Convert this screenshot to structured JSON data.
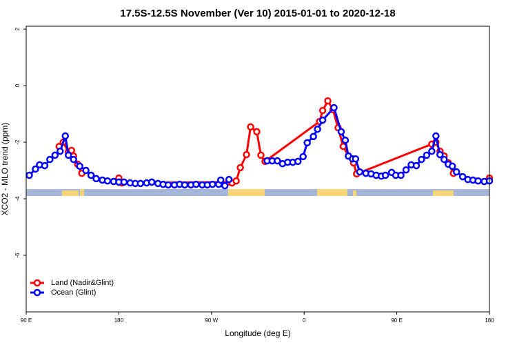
{
  "chart_data": {
    "type": "line",
    "title": "17.5S-12.5S November (Ver 10)   2015-01-01 to 2020-12-18",
    "x_label": "Longitude (deg E)",
    "y_label": "XCO2 - MLO trend (ppm)",
    "xlim": [
      90,
      540
    ],
    "ylim": [
      -8,
      2.1
    ],
    "xticks": [
      {
        "value": 90,
        "label": "90 E"
      },
      180,
      {
        "value": 270,
        "label": "90 W"
      },
      {
        "value": 360,
        "label": "0"
      },
      {
        "value": 450,
        "label": "90 E"
      },
      {
        "value": 540,
        "label": "180"
      }
    ],
    "yticks": [
      2,
      0,
      -2,
      -4,
      -6
    ],
    "legend": "bottomleft",
    "series": [
      {
        "name": "Land (Nadir&Glint)",
        "color": "#ff0000",
        "x": [
          122,
          126,
          131,
          134,
          136,
          140,
          144,
          146,
          180,
          183,
          287,
          290,
          294,
          298,
          304,
          308,
          314,
          318,
          322,
          375,
          378,
          383,
          388,
          393,
          398,
          403,
          408,
          411,
          484,
          488,
          492,
          496,
          500,
          505,
          520,
          540
        ],
        "values": [
          -2.15,
          -2.0,
          -2.34,
          -2.29,
          -2.49,
          -2.78,
          -3.1,
          null,
          -3.27,
          -3.44,
          -3.41,
          -3.44,
          -3.37,
          -2.9,
          -2.44,
          -1.46,
          -1.63,
          -2.46,
          -2.68,
          -1.27,
          -0.88,
          -0.54,
          -0.85,
          -1.49,
          -2.15,
          -2.49,
          -2.73,
          -3.12,
          -2.07,
          -2.0,
          -2.32,
          -2.49,
          -2.73,
          -3.1,
          null,
          -3.27
        ]
      },
      {
        "name": "Ocean (Glint)",
        "color": "#0000ff",
        "x": [
          93,
          99,
          103,
          108,
          113,
          118,
          123,
          128,
          131,
          136,
          142,
          148,
          153,
          158,
          164,
          169,
          175,
          180,
          185,
          191,
          196,
          201,
          207,
          212,
          218,
          223,
          228,
          234,
          239,
          244,
          250,
          255,
          261,
          266,
          271,
          277,
          279,
          283,
          287,
          305,
          324,
          329,
          334,
          339,
          344,
          349,
          354,
          359,
          363,
          369,
          373,
          378,
          389,
          396,
          400,
          403,
          407,
          410,
          414,
          420,
          425,
          430,
          435,
          439,
          445,
          449,
          454,
          459,
          464,
          469,
          474,
          479,
          484,
          488,
          492,
          496,
          500,
          504,
          508,
          514,
          519,
          524,
          529,
          535,
          540
        ],
        "values": [
          -3.17,
          -2.95,
          -2.8,
          -2.83,
          -2.61,
          -2.46,
          -2.32,
          -1.78,
          -2.46,
          -2.61,
          -2.85,
          -3.0,
          -3.17,
          -3.29,
          -3.34,
          -3.37,
          -3.39,
          -3.41,
          -3.41,
          -3.44,
          -3.46,
          -3.46,
          -3.44,
          -3.41,
          -3.46,
          -3.49,
          -3.51,
          -3.51,
          -3.49,
          -3.51,
          -3.51,
          -3.49,
          -3.51,
          -3.51,
          -3.49,
          -3.49,
          -3.34,
          -3.54,
          -3.32,
          null,
          -2.66,
          -2.66,
          -2.66,
          -2.76,
          -2.71,
          -2.71,
          -2.68,
          -2.51,
          -2.02,
          -1.8,
          -1.54,
          -1.22,
          -0.78,
          -1.63,
          -1.93,
          -2.49,
          -2.59,
          -2.59,
          -3.05,
          -3.1,
          -3.12,
          -3.17,
          -3.2,
          -3.17,
          -3.07,
          -3.17,
          -3.17,
          -2.98,
          -2.8,
          -2.83,
          -2.61,
          -2.46,
          -2.32,
          -1.78,
          -2.44,
          -2.61,
          -2.78,
          -2.85,
          -3.05,
          -3.22,
          -3.32,
          -3.34,
          -3.37,
          -3.39,
          -3.37
        ]
      }
    ]
  }
}
